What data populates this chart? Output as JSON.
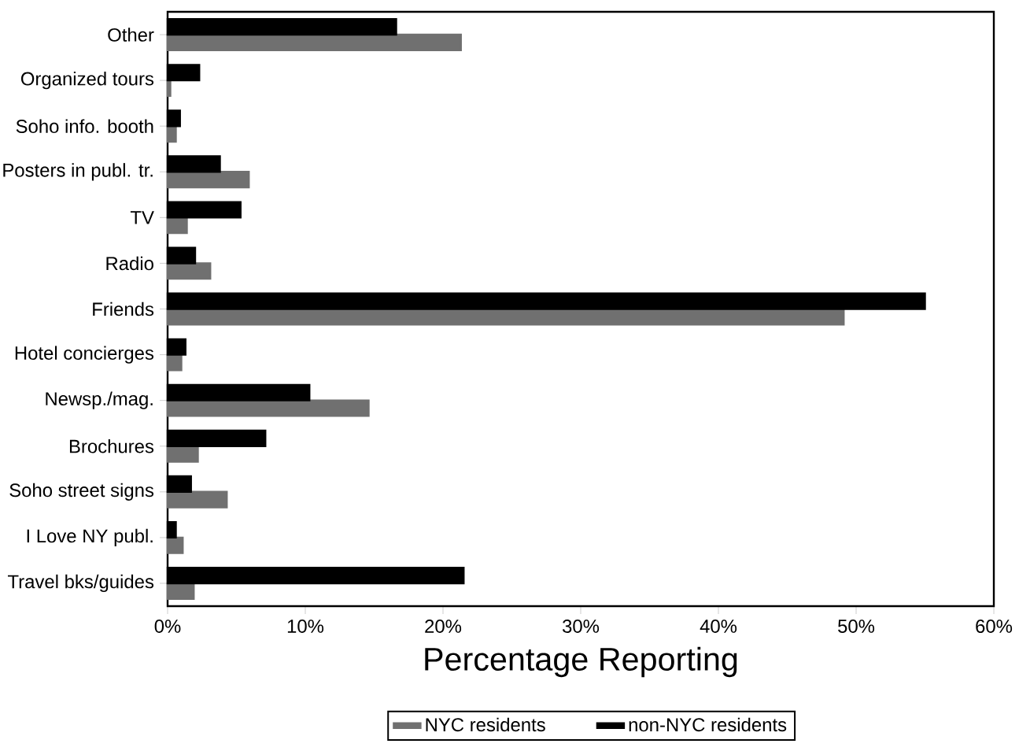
{
  "chart_data": {
    "type": "bar",
    "orientation": "horizontal",
    "xlabel": "Percentage Reporting",
    "categories": [
      "Other",
      "Organized tours",
      "Soho info. booth",
      "Posters in publ. tr.",
      "TV",
      "Radio",
      "Friends",
      "Hotel concierges",
      "Newsp./mag.",
      "Brochures",
      "Soho street signs",
      "I Love NY publ.",
      "Travel bks/guides"
    ],
    "series": [
      {
        "name": "NYC residents",
        "color": "#707070",
        "values": [
          21.3,
          0.2,
          0.6,
          5.9,
          1.4,
          3.1,
          49.1,
          1.0,
          14.6,
          2.2,
          4.3,
          1.1,
          1.9
        ]
      },
      {
        "name": "non-NYC residents",
        "color": "#000000",
        "values": [
          16.6,
          2.3,
          0.9,
          3.8,
          5.3,
          2.0,
          55.0,
          1.3,
          10.3,
          7.1,
          1.7,
          0.6,
          21.5
        ]
      }
    ],
    "xlim": [
      0,
      60
    ],
    "xticks": [
      {
        "value": 0,
        "label": "0%"
      },
      {
        "value": 10,
        "label": "10%"
      },
      {
        "value": 20,
        "label": "20%"
      },
      {
        "value": 30,
        "label": "30%"
      },
      {
        "value": 40,
        "label": "40%"
      },
      {
        "value": 50,
        "label": "50%"
      },
      {
        "value": 60,
        "label": "60%"
      }
    ],
    "legend": "bottom"
  }
}
